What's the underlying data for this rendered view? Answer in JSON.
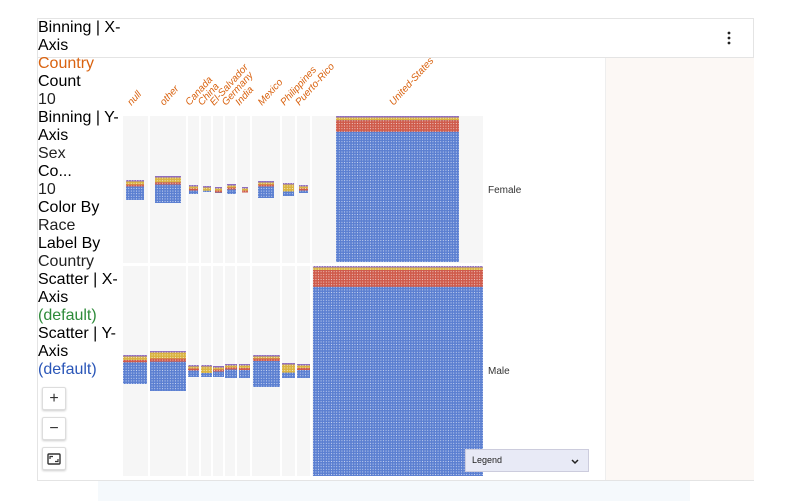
{
  "toolbar": {
    "fields": [
      {
        "label": "Binning | X-Axis",
        "value": "Country"
      },
      {
        "label": "Count",
        "value": "10"
      },
      {
        "label": "Binning | Y-Axis",
        "value": "Sex"
      },
      {
        "label": "Co...",
        "value": "10"
      },
      {
        "label": "Color By",
        "value": "Race"
      },
      {
        "label": "Label By",
        "value": "Country"
      },
      {
        "label": "Scatter | X-Axis",
        "value": "(default)"
      },
      {
        "label": "Scatter | Y-Axis",
        "value": "(default)"
      }
    ]
  },
  "columns": [
    "null",
    "other",
    "Canada",
    "China",
    "El-Salvador",
    "Germany",
    "India",
    "Mexico",
    "Philippines",
    "Puerto-Rico",
    "United-States"
  ],
  "rows": [
    "Female",
    "Male"
  ],
  "controls": {
    "zoom_in": "+",
    "zoom_out": "−"
  },
  "legend": "Legend"
}
